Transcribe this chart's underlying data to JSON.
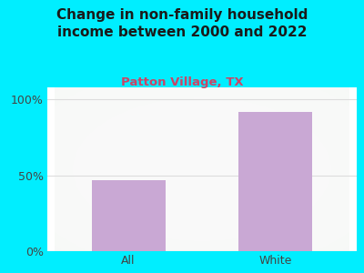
{
  "categories": [
    "All",
    "White"
  ],
  "values": [
    47,
    92
  ],
  "bar_color": "#c9a8d4",
  "title": "Change in non-family household\nincome between 2000 and 2022",
  "subtitle": "Patton Village, TX",
  "subtitle_color": "#cc4466",
  "title_color": "#1a1a1a",
  "background_color": "#00eeff",
  "ylabel_ticks": [
    "0%",
    "50%",
    "100%"
  ],
  "ytick_values": [
    0,
    50,
    100
  ],
  "ylim": [
    0,
    108
  ],
  "title_fontsize": 11,
  "subtitle_fontsize": 9.5,
  "tick_fontsize": 9,
  "tick_color": "#444444",
  "grid_color": "#dddddd",
  "bar_width": 0.5
}
